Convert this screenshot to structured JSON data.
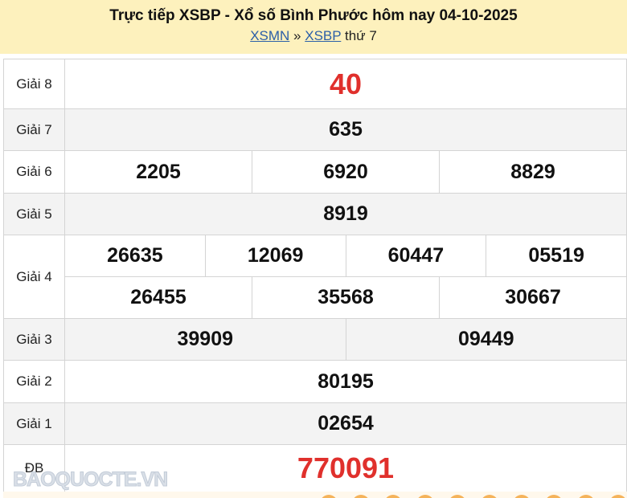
{
  "header": {
    "title": "Trực tiếp XSBP - Xổ số Bình Phước hôm nay 04-10-2025",
    "link1": "XSMN",
    "sep": "»",
    "link2": "XSBP",
    "day": "thứ 7"
  },
  "colors": {
    "header_bg": "#fdf1bd",
    "accent_red": "#e0302c",
    "link": "#2b5fa8"
  },
  "prizes": [
    {
      "label": "Giải 8",
      "numbers": [
        "40"
      ]
    },
    {
      "label": "Giải 7",
      "numbers": [
        "635"
      ]
    },
    {
      "label": "Giải 6",
      "numbers": [
        "2205",
        "6920",
        "8829"
      ]
    },
    {
      "label": "Giải 5",
      "numbers": [
        "8919"
      ]
    },
    {
      "label": "Giải 4",
      "numbers": [
        "26635",
        "12069",
        "60447",
        "05519",
        "26455",
        "35568",
        "30667"
      ]
    },
    {
      "label": "Giải 3",
      "numbers": [
        "39909",
        "09449"
      ]
    },
    {
      "label": "Giải 2",
      "numbers": [
        "80195"
      ]
    },
    {
      "label": "Giải 1",
      "numbers": [
        "02654"
      ]
    },
    {
      "label": "ĐB",
      "numbers": [
        "770091"
      ]
    }
  ],
  "watermark": "BAOQUOCTE.VN"
}
